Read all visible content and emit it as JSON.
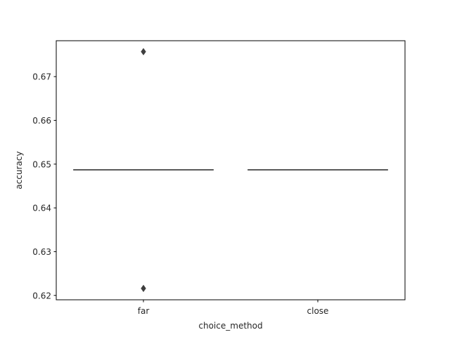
{
  "chart_data": {
    "type": "box",
    "xlabel": "choice_method",
    "ylabel": "accuracy",
    "ylim": [
      0.619,
      0.6782
    ],
    "yticks": [
      0.62,
      0.63,
      0.64,
      0.65,
      0.66,
      0.67
    ],
    "ytick_labels": [
      "0.62",
      "0.63",
      "0.64",
      "0.65",
      "0.66",
      "0.67"
    ],
    "categories": [
      "far",
      "close"
    ],
    "boxes": [
      {
        "category": "far",
        "median": 0.6487,
        "q1": 0.6487,
        "q3": 0.6487,
        "whisker_low": 0.6487,
        "whisker_high": 0.6487,
        "outliers": [
          0.6757,
          0.6216
        ]
      },
      {
        "category": "close",
        "median": 0.6487,
        "q1": 0.6487,
        "q3": 0.6487,
        "whisker_low": 0.6487,
        "whisker_high": 0.6487,
        "outliers": []
      }
    ],
    "colors": {
      "line": "#3f3f3f",
      "outlier": "#3f3f3f",
      "axes": "#000000"
    }
  }
}
